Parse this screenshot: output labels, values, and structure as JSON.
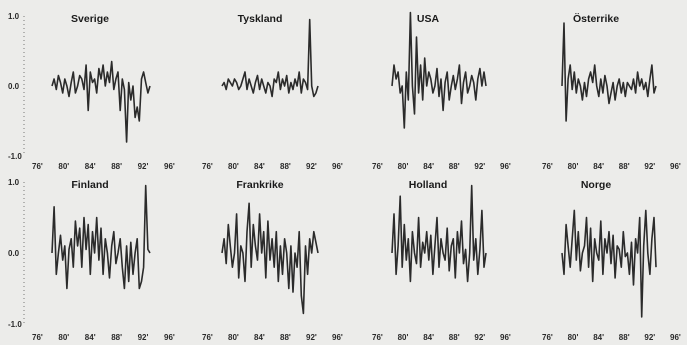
{
  "chart_data": {
    "type": "line",
    "layout": "small-multiples",
    "rows": 2,
    "cols": 4,
    "line_color": "#2b2b2b",
    "ylim": [
      -1.0,
      1.0
    ],
    "y_ticks": [
      {
        "value": 1.0,
        "label": "1.0"
      },
      {
        "value": 0.0,
        "label": "0.0"
      },
      {
        "value": -1.0,
        "label": "-1.0"
      }
    ],
    "x_range": [
      1975,
      1996
    ],
    "x_ticks": [
      {
        "value": 1976,
        "label": "76'"
      },
      {
        "value": 1980,
        "label": "80'"
      },
      {
        "value": 1984,
        "label": "84'"
      },
      {
        "value": 1988,
        "label": "88'"
      },
      {
        "value": 1992,
        "label": "92'"
      },
      {
        "value": 1996,
        "label": "96'"
      }
    ],
    "data_x_start": 1976,
    "data_x_step": 0.25,
    "panels": [
      {
        "title": "Sverige",
        "values": [
          0.0,
          0.1,
          -0.05,
          0.15,
          0.05,
          -0.1,
          0.1,
          0.0,
          -0.15,
          0.05,
          0.2,
          -0.1,
          0.0,
          0.15,
          0.1,
          -0.05,
          0.3,
          -0.35,
          0.2,
          0.05,
          0.1,
          -0.1,
          0.25,
          0.1,
          0.3,
          0.0,
          0.2,
          0.05,
          0.35,
          -0.05,
          0.1,
          0.2,
          -0.35,
          0.1,
          -0.05,
          -0.8,
          0.05,
          -0.2,
          0.0,
          -0.45,
          -0.3,
          -0.5,
          0.1,
          0.2,
          0.05,
          -0.1,
          0.0
        ]
      },
      {
        "title": "Tyskland",
        "values": [
          0.0,
          0.05,
          -0.05,
          0.1,
          0.05,
          0.0,
          0.1,
          0.05,
          -0.05,
          0.0,
          0.1,
          0.2,
          -0.05,
          0.1,
          0.0,
          -0.1,
          0.05,
          0.15,
          -0.05,
          0.1,
          0.0,
          -0.1,
          0.05,
          0.0,
          -0.15,
          0.1,
          0.05,
          0.2,
          -0.05,
          0.1,
          0.0,
          0.15,
          -0.1,
          0.05,
          -0.05,
          0.1,
          0.0,
          0.2,
          -0.1,
          0.1,
          0.05,
          -0.05,
          0.95,
          0.0,
          -0.15,
          -0.1,
          0.0
        ]
      },
      {
        "title": "USA",
        "values": [
          0.0,
          0.3,
          0.1,
          0.2,
          -0.1,
          0.0,
          -0.6,
          0.2,
          -0.2,
          1.05,
          0.0,
          -0.4,
          0.7,
          -0.1,
          0.3,
          -0.2,
          0.4,
          0.0,
          0.2,
          0.1,
          -0.1,
          0.0,
          0.25,
          -0.15,
          0.1,
          -0.35,
          0.05,
          0.2,
          -0.2,
          0.0,
          0.15,
          -0.05,
          0.1,
          0.3,
          -0.25,
          0.05,
          0.2,
          -0.1,
          0.0,
          0.15,
          0.05,
          -0.2,
          0.1,
          0.25,
          0.0,
          0.2,
          0.0
        ]
      },
      {
        "title": "Österrike",
        "values": [
          0.0,
          0.9,
          -0.5,
          0.1,
          0.3,
          -0.05,
          0.2,
          -0.1,
          0.1,
          0.0,
          -0.2,
          0.05,
          -0.15,
          0.1,
          0.2,
          0.05,
          0.3,
          0.0,
          -0.15,
          0.1,
          -0.1,
          0.15,
          0.0,
          -0.25,
          -0.1,
          0.05,
          -0.2,
          0.0,
          0.1,
          -0.1,
          0.05,
          -0.15,
          0.05,
          0.0,
          -0.05,
          0.1,
          -0.1,
          0.2,
          0.0,
          0.1,
          -0.05,
          0.05,
          -0.15,
          0.1,
          0.3,
          -0.1,
          0.0
        ]
      },
      {
        "title": "Finland",
        "values": [
          0.0,
          0.65,
          -0.3,
          0.0,
          0.25,
          -0.1,
          0.1,
          -0.5,
          0.05,
          0.2,
          -0.2,
          0.45,
          0.1,
          0.35,
          -0.2,
          0.5,
          0.05,
          0.4,
          -0.3,
          0.3,
          0.0,
          0.5,
          -0.1,
          0.35,
          -0.3,
          0.2,
          0.0,
          -0.35,
          0.1,
          0.3,
          -0.15,
          0.0,
          0.2,
          -0.2,
          -0.5,
          0.1,
          -0.4,
          0.15,
          -0.3,
          0.0,
          0.2,
          -0.5,
          -0.4,
          -0.2,
          0.95,
          0.05,
          0.0
        ]
      },
      {
        "title": "Frankrike",
        "values": [
          0.0,
          0.2,
          -0.15,
          0.4,
          0.1,
          -0.2,
          0.0,
          0.55,
          -0.35,
          0.1,
          0.0,
          -0.4,
          0.3,
          0.7,
          -0.2,
          0.4,
          0.1,
          -0.1,
          0.55,
          0.0,
          0.3,
          -0.35,
          0.45,
          -0.1,
          0.2,
          -0.2,
          0.3,
          -0.4,
          0.1,
          -0.3,
          0.2,
          0.0,
          -0.5,
          0.1,
          -0.55,
          0.0,
          -0.2,
          0.3,
          -0.6,
          -0.85,
          0.1,
          -0.3,
          0.2,
          0.0,
          0.3,
          0.15,
          0.0
        ]
      },
      {
        "title": "Holland",
        "values": [
          0.0,
          0.55,
          -0.3,
          0.1,
          0.8,
          -0.2,
          0.4,
          -0.1,
          0.2,
          -0.4,
          0.3,
          0.0,
          -0.15,
          0.5,
          -0.2,
          0.15,
          0.0,
          0.3,
          -0.1,
          0.25,
          -0.3,
          0.1,
          0.5,
          -0.2,
          0.2,
          0.0,
          -0.1,
          0.35,
          -0.25,
          0.1,
          0.2,
          -0.35,
          0.3,
          0.0,
          0.45,
          -0.15,
          0.05,
          -0.4,
          0.0,
          0.95,
          -0.1,
          0.2,
          -0.3,
          0.05,
          0.6,
          -0.2,
          0.0
        ]
      },
      {
        "title": "Norge",
        "values": [
          0.0,
          -0.3,
          0.4,
          0.1,
          -0.2,
          0.2,
          0.6,
          -0.1,
          0.3,
          -0.25,
          0.0,
          0.1,
          0.5,
          -0.2,
          0.35,
          -0.4,
          0.2,
          0.0,
          -0.1,
          0.45,
          -0.3,
          0.2,
          0.0,
          0.3,
          -0.15,
          0.25,
          -0.35,
          0.1,
          0.05,
          -0.2,
          0.3,
          -0.05,
          0.0,
          -0.3,
          0.15,
          -0.45,
          0.2,
          0.0,
          0.5,
          -0.9,
          0.1,
          0.6,
          0.0,
          -0.3,
          0.2,
          0.5,
          -0.2
        ]
      }
    ]
  }
}
